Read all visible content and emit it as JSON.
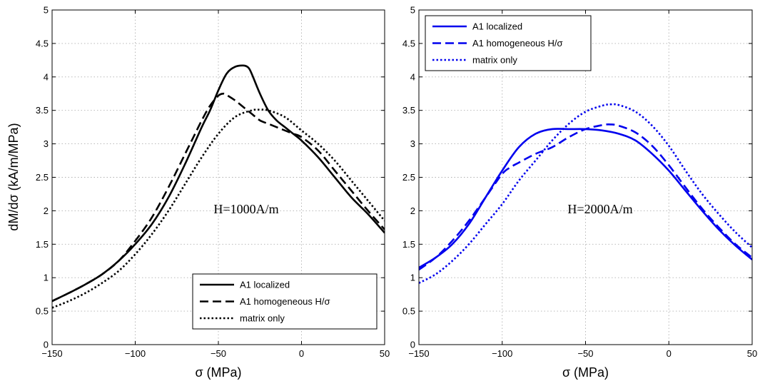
{
  "chart_data": [
    {
      "type": "line",
      "title": "",
      "xlabel": "σ (MPa)",
      "ylabel": "dM/dσ (kA/m/MPa)",
      "xlim": [
        -150,
        50
      ],
      "ylim": [
        0,
        5
      ],
      "xticks": [
        -150,
        -100,
        -50,
        0,
        50
      ],
      "yticks": [
        0,
        0.5,
        1,
        1.5,
        2,
        2.5,
        3,
        3.5,
        4,
        4.5,
        5
      ],
      "grid": true,
      "legend_position": "bottom-right",
      "annotation": "H=1000A/m",
      "line_color": "#000000",
      "series": [
        {
          "name": "A1 localized",
          "style": "solid",
          "x": [
            -150,
            -140,
            -130,
            -120,
            -110,
            -100,
            -90,
            -80,
            -70,
            -60,
            -55,
            -50,
            -45,
            -40,
            -35,
            -32,
            -30,
            -25,
            -20,
            -15,
            -10,
            -5,
            0,
            10,
            20,
            30,
            40,
            50
          ],
          "y": [
            0.65,
            0.77,
            0.9,
            1.05,
            1.25,
            1.5,
            1.8,
            2.2,
            2.7,
            3.25,
            3.5,
            3.8,
            4.05,
            4.15,
            4.17,
            4.14,
            4.05,
            3.75,
            3.5,
            3.35,
            3.25,
            3.15,
            3.05,
            2.8,
            2.5,
            2.2,
            1.95,
            1.67
          ]
        },
        {
          "name": "A1 homogeneous H/σ",
          "style": "dashed",
          "x": [
            -150,
            -140,
            -130,
            -120,
            -110,
            -100,
            -90,
            -80,
            -70,
            -65,
            -60,
            -55,
            -50,
            -47,
            -45,
            -40,
            -35,
            -30,
            -25,
            -20,
            -15,
            -10,
            -5,
            0,
            10,
            20,
            30,
            40,
            50
          ],
          "y": [
            0.65,
            0.77,
            0.9,
            1.05,
            1.25,
            1.55,
            1.9,
            2.35,
            2.85,
            3.1,
            3.35,
            3.57,
            3.72,
            3.75,
            3.73,
            3.65,
            3.55,
            3.45,
            3.35,
            3.3,
            3.25,
            3.2,
            3.15,
            3.1,
            2.9,
            2.6,
            2.3,
            2.0,
            1.72
          ]
        },
        {
          "name": "matrix only",
          "style": "dotted",
          "x": [
            -150,
            -140,
            -130,
            -120,
            -110,
            -100,
            -90,
            -80,
            -70,
            -60,
            -50,
            -40,
            -30,
            -25,
            -20,
            -10,
            0,
            10,
            20,
            30,
            40,
            50
          ],
          "y": [
            0.55,
            0.65,
            0.77,
            0.92,
            1.1,
            1.35,
            1.65,
            2.0,
            2.4,
            2.8,
            3.15,
            3.4,
            3.5,
            3.51,
            3.5,
            3.4,
            3.2,
            3.0,
            2.75,
            2.45,
            2.15,
            1.85
          ]
        }
      ]
    },
    {
      "type": "line",
      "title": "",
      "xlabel": "σ (MPa)",
      "ylabel": "",
      "xlim": [
        -150,
        50
      ],
      "ylim": [
        0,
        5
      ],
      "xticks": [
        -150,
        -100,
        -50,
        0,
        50
      ],
      "yticks": [
        0,
        0.5,
        1,
        1.5,
        2,
        2.5,
        3,
        3.5,
        4,
        4.5,
        5
      ],
      "grid": true,
      "legend_position": "top-left",
      "annotation": "H=2000A/m",
      "line_color": "#0000ee",
      "series": [
        {
          "name": "A1 localized",
          "style": "solid",
          "x": [
            -150,
            -140,
            -130,
            -120,
            -110,
            -100,
            -90,
            -80,
            -70,
            -60,
            -50,
            -40,
            -30,
            -20,
            -10,
            0,
            10,
            20,
            30,
            40,
            50
          ],
          "y": [
            1.15,
            1.3,
            1.5,
            1.8,
            2.2,
            2.6,
            2.95,
            3.15,
            3.22,
            3.22,
            3.22,
            3.2,
            3.15,
            3.05,
            2.85,
            2.6,
            2.3,
            2.0,
            1.72,
            1.48,
            1.27
          ]
        },
        {
          "name": "A1 homogeneous H/σ",
          "style": "dashed",
          "x": [
            -150,
            -140,
            -130,
            -120,
            -110,
            -100,
            -95,
            -90,
            -80,
            -70,
            -60,
            -50,
            -40,
            -35,
            -30,
            -20,
            -10,
            0,
            10,
            20,
            30,
            40,
            50
          ],
          "y": [
            1.12,
            1.3,
            1.55,
            1.85,
            2.2,
            2.55,
            2.65,
            2.72,
            2.85,
            2.95,
            3.1,
            3.22,
            3.28,
            3.29,
            3.27,
            3.17,
            2.97,
            2.68,
            2.35,
            2.03,
            1.75,
            1.5,
            1.3
          ]
        },
        {
          "name": "matrix only",
          "style": "dotted",
          "x": [
            -150,
            -140,
            -130,
            -120,
            -110,
            -100,
            -90,
            -80,
            -70,
            -60,
            -50,
            -40,
            -35,
            -30,
            -20,
            -10,
            0,
            10,
            20,
            30,
            40,
            50
          ],
          "y": [
            0.92,
            1.05,
            1.25,
            1.5,
            1.8,
            2.1,
            2.45,
            2.75,
            3.05,
            3.3,
            3.48,
            3.57,
            3.59,
            3.58,
            3.48,
            3.27,
            2.97,
            2.6,
            2.25,
            1.95,
            1.68,
            1.45
          ]
        }
      ]
    }
  ]
}
